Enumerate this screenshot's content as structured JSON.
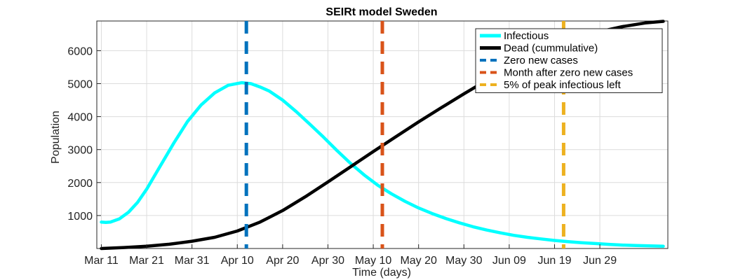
{
  "chart_data": {
    "type": "line",
    "title": "SEIRt model Sweden",
    "xlabel": "Time (days)",
    "ylabel": "Population",
    "x_tick_labels": [
      "Mar 11",
      "Mar 21",
      "Mar 31",
      "Apr 10",
      "Apr 20",
      "Apr 30",
      "May 10",
      "May 20",
      "May 30",
      "Jun 09",
      "Jun 19",
      "Jun 29"
    ],
    "y_ticks": [
      1000,
      2000,
      3000,
      4000,
      5000,
      6000
    ],
    "xlim_days_from_start": [
      -1,
      125
    ],
    "start_date": "Mar 11",
    "ylim": [
      0,
      6900
    ],
    "grid": true,
    "legend_placement": "top-right",
    "colors": {
      "infectious": "#00ffff",
      "dead": "#000000",
      "zero_new_cases": "#0072bd",
      "month_after": "#d95319",
      "five_percent": "#edb120"
    },
    "series": [
      {
        "name": "Infectious",
        "color": "#00ffff",
        "x": [
          0,
          1,
          2,
          4,
          6,
          8,
          10,
          13,
          16,
          19,
          22,
          25,
          28,
          31,
          33,
          35,
          37,
          40,
          43,
          46,
          49,
          52,
          55,
          58,
          61,
          64,
          67,
          70,
          73,
          76,
          79,
          82,
          85,
          88,
          91,
          94,
          97,
          100,
          103,
          106,
          109,
          112,
          115,
          118,
          121,
          124
        ],
        "y": [
          800,
          790,
          800,
          900,
          1100,
          1400,
          1800,
          2500,
          3200,
          3850,
          4350,
          4720,
          4950,
          5030,
          5000,
          4900,
          4780,
          4500,
          4150,
          3770,
          3380,
          2970,
          2580,
          2230,
          1920,
          1660,
          1430,
          1230,
          1060,
          910,
          780,
          660,
          560,
          475,
          400,
          340,
          290,
          245,
          205,
          175,
          150,
          125,
          105,
          90,
          80,
          70
        ]
      },
      {
        "name": "Dead (cummulative)",
        "color": "#000000",
        "x": [
          0,
          5,
          10,
          15,
          20,
          25,
          30,
          35,
          40,
          45,
          50,
          55,
          60,
          65,
          70,
          75,
          80,
          85,
          90,
          95,
          100,
          105,
          110,
          115,
          120,
          124
        ],
        "y": [
          0,
          30,
          70,
          130,
          220,
          340,
          530,
          800,
          1150,
          1570,
          2020,
          2480,
          2940,
          3390,
          3840,
          4270,
          4690,
          5100,
          5470,
          5810,
          6110,
          6370,
          6580,
          6730,
          6840,
          6890
        ]
      }
    ],
    "vertical_lines": [
      {
        "name": "Zero new cases",
        "x": 32,
        "color": "#0072bd"
      },
      {
        "name": "Month after zero new cases",
        "x": 62,
        "color": "#d95319"
      },
      {
        "name": "5% of peak infectious left",
        "x": 102,
        "color": "#edb120"
      }
    ]
  }
}
